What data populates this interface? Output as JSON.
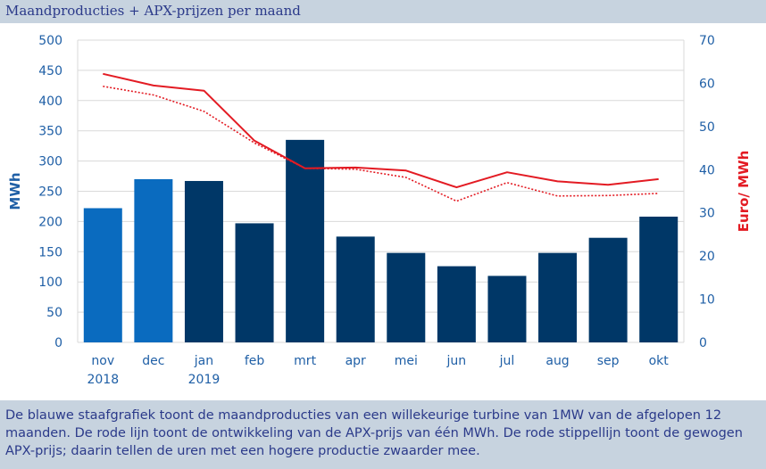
{
  "title": "Maandproducties + APX-prijzen per maand",
  "caption": "De blauwe staafgrafiek toont de maandproducties van een willekeurige turbine van 1MW van de afgelopen 12 maanden. De rode lijn toont de ontwikkeling van de APX-prijs van één MWh. De rode stippellijn toont de gewogen APX-prijs; daarin tellen de uren met een hogere productie zwaarder mee.",
  "colors": {
    "bar_highlight": "#0a6bbf",
    "bar_default": "#003767",
    "line_red": "#e31b23",
    "grid": "#d9d9d9",
    "left_axis_text": "#1f5fa6",
    "right_axis_text": "#e31b23",
    "month_text": "#1f5fa6"
  },
  "chart_data": {
    "type": "bar",
    "categories": [
      "nov",
      "dec",
      "jan",
      "feb",
      "mrt",
      "apr",
      "mei",
      "jun",
      "jul",
      "aug",
      "sep",
      "okt"
    ],
    "category_years": [
      "2018",
      "",
      "2019",
      "",
      "",
      "",
      "",
      "",
      "",
      "",
      "",
      ""
    ],
    "ylabel": "MWh",
    "ylabel_right": "Euro/ MWh",
    "ylim": [
      0,
      500
    ],
    "ylim_right": [
      0,
      70
    ],
    "yticks": [
      0,
      50,
      100,
      150,
      200,
      250,
      300,
      350,
      400,
      450,
      500
    ],
    "yticks_right": [
      0,
      10,
      20,
      30,
      40,
      50,
      60,
      70
    ],
    "grid": true,
    "series": [
      {
        "type": "bar",
        "axis": "left",
        "values": [
          222,
          270,
          267,
          197,
          335,
          175,
          148,
          126,
          110,
          148,
          173,
          208
        ],
        "highlight": [
          true,
          true,
          false,
          false,
          false,
          false,
          false,
          false,
          false,
          false,
          false,
          false
        ]
      },
      {
        "type": "line",
        "axis": "right",
        "style": "solid",
        "values": [
          62.2,
          59.5,
          58.3,
          46.7,
          40.3,
          40.5,
          39.8,
          35.9,
          39.4,
          37.3,
          36.5,
          37.8
        ]
      },
      {
        "type": "line",
        "axis": "right",
        "style": "dotted",
        "values": [
          59.3,
          57.3,
          53.5,
          46.2,
          40.3,
          40.1,
          38.2,
          32.7,
          37.0,
          33.9,
          34.0,
          34.5
        ]
      }
    ]
  }
}
